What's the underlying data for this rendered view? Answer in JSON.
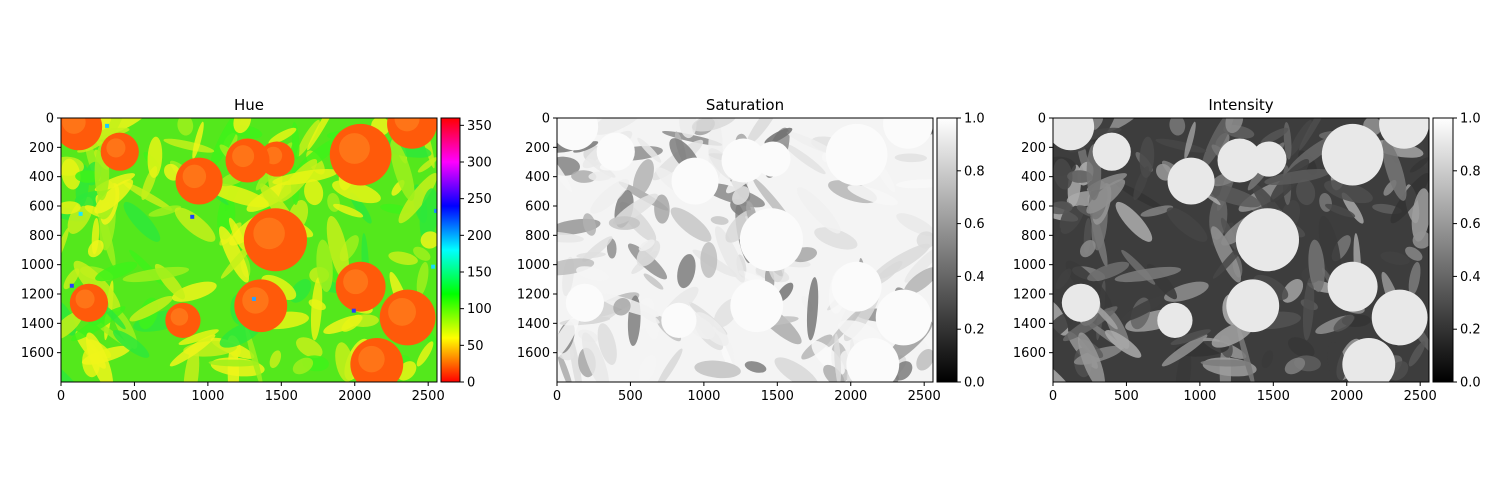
{
  "chart_data": [
    {
      "type": "heatmap",
      "title": "Hue",
      "image_width": 2560,
      "image_height": 1800,
      "xticks": [
        0,
        500,
        1000,
        1500,
        2000,
        2500
      ],
      "yticks": [
        0,
        200,
        400,
        600,
        800,
        1000,
        1200,
        1400,
        1600
      ],
      "colormap": "hsv",
      "colorbar": {
        "min": 0,
        "max": 360,
        "ticks": [
          0,
          50,
          100,
          150,
          200,
          250,
          300,
          350
        ]
      },
      "description_values": {
        "background_hue": 110,
        "fruit_hue": 20
      }
    },
    {
      "type": "heatmap",
      "title": "Saturation",
      "image_width": 2560,
      "image_height": 1800,
      "xticks": [
        0,
        500,
        1000,
        1500,
        2000,
        2500
      ],
      "yticks": [
        0,
        200,
        400,
        600,
        800,
        1000,
        1200,
        1400,
        1600
      ],
      "colormap": "gray",
      "colorbar": {
        "min": 0.0,
        "max": 1.0,
        "ticks": [
          "0.0",
          "0.2",
          "0.4",
          "0.6",
          "0.8",
          "1.0"
        ]
      }
    },
    {
      "type": "heatmap",
      "title": "Intensity",
      "image_width": 2560,
      "image_height": 1800,
      "xticks": [
        0,
        500,
        1000,
        1500,
        2000,
        2500
      ],
      "yticks": [
        0,
        200,
        400,
        600,
        800,
        1000,
        1200,
        1400,
        1600
      ],
      "colormap": "gray",
      "colorbar": {
        "min": 0.0,
        "max": 1.0,
        "ticks": [
          "0.0",
          "0.2",
          "0.4",
          "0.6",
          "0.8",
          "1.0"
        ]
      }
    }
  ],
  "fruits": [
    {
      "cx": 120,
      "cy": 60,
      "r": 160
    },
    {
      "cx": 400,
      "cy": 230,
      "r": 130
    },
    {
      "cx": 940,
      "cy": 430,
      "r": 160
    },
    {
      "cx": 1470,
      "cy": 280,
      "r": 120
    },
    {
      "cx": 1270,
      "cy": 290,
      "r": 150
    },
    {
      "cx": 2040,
      "cy": 250,
      "r": 210
    },
    {
      "cx": 2390,
      "cy": 40,
      "r": 170
    },
    {
      "cx": 1460,
      "cy": 830,
      "r": 215
    },
    {
      "cx": 2040,
      "cy": 1150,
      "r": 170
    },
    {
      "cx": 1360,
      "cy": 1280,
      "r": 180
    },
    {
      "cx": 190,
      "cy": 1260,
      "r": 130
    },
    {
      "cx": 830,
      "cy": 1380,
      "r": 120
    },
    {
      "cx": 2360,
      "cy": 1360,
      "r": 190
    },
    {
      "cx": 2150,
      "cy": 1680,
      "r": 180
    }
  ]
}
